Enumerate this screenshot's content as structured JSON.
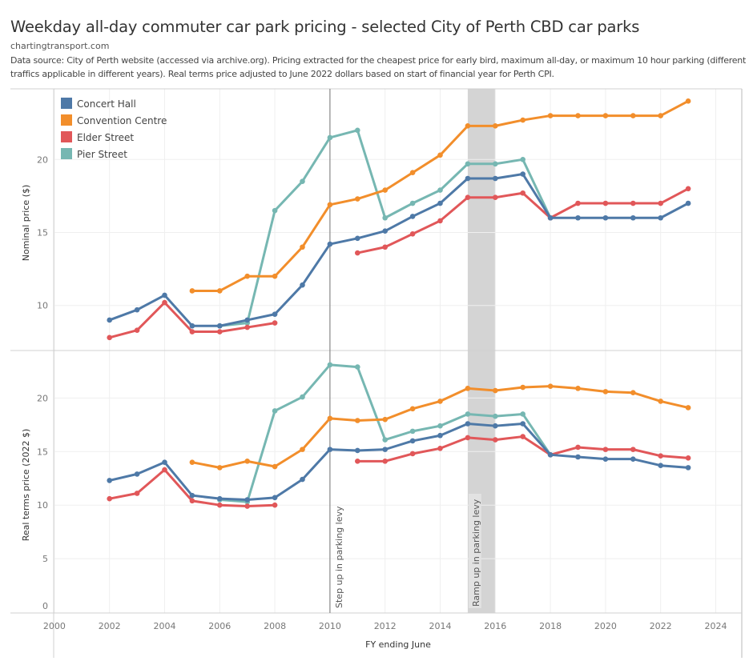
{
  "header": {
    "title": "Weekday all-day commuter car park pricing - selected City of Perth CBD car parks",
    "source": "chartingtransport.com",
    "description": "Data source: City of Perth website (accessed via archive.org). Pricing extracted for the cheapest price for early bird, maximum all-day, or maximum 10 hour parking (different traffics applicable in different years). Real terms price adjusted to June 2022 dollars based on start of financial year for Perth CPI."
  },
  "chart_data": [
    {
      "type": "line",
      "panel": "top",
      "title": "Weekday all-day commuter car park pricing - selected City of Perth CBD car parks",
      "xlabel": "FY ending June",
      "ylabel": "Nominal price ($)",
      "xlim": [
        2000,
        2025
      ],
      "ylim": [
        7.2,
        24.8
      ],
      "yticks": [
        10,
        15,
        20
      ],
      "grid": true,
      "legend_position": "top-left",
      "x": [
        2002,
        2003,
        2004,
        2005,
        2006,
        2007,
        2008,
        2009,
        2010,
        2011,
        2012,
        2013,
        2014,
        2015,
        2016,
        2017,
        2018,
        2019,
        2020,
        2021,
        2022,
        2023
      ],
      "series": [
        {
          "name": "Concert Hall",
          "color": "#4e79a7",
          "values": [
            9.0,
            9.7,
            10.7,
            8.6,
            8.6,
            9.0,
            9.4,
            11.4,
            14.2,
            14.6,
            15.1,
            16.1,
            17.0,
            18.7,
            18.7,
            19.0,
            16.0,
            16.0,
            16.0,
            16.0,
            16.0,
            17.0
          ]
        },
        {
          "name": "Convention Centre",
          "color": "#f28e2b",
          "values": [
            null,
            null,
            null,
            11.0,
            11.0,
            12.0,
            12.0,
            14.0,
            16.9,
            17.3,
            17.9,
            19.1,
            20.3,
            22.3,
            22.3,
            22.7,
            23.0,
            23.0,
            23.0,
            23.0,
            23.0,
            24.0
          ]
        },
        {
          "name": "Elder Street",
          "color": "#e15759",
          "values": [
            7.8,
            8.3,
            10.2,
            8.2,
            8.2,
            8.5,
            8.8,
            null,
            null,
            13.6,
            14.0,
            14.9,
            15.8,
            17.4,
            17.4,
            17.7,
            16.0,
            17.0,
            17.0,
            17.0,
            17.0,
            18.0
          ]
        },
        {
          "name": "Pier Street",
          "color": "#76b7b2",
          "values": [
            null,
            null,
            null,
            null,
            8.6,
            8.8,
            16.5,
            18.5,
            21.5,
            22.0,
            16.0,
            17.0,
            17.9,
            19.7,
            19.7,
            20.0,
            16.0,
            null,
            null,
            null,
            null,
            null
          ]
        }
      ]
    },
    {
      "type": "line",
      "panel": "bottom",
      "xlabel": "FY ending June",
      "ylabel": "Real terms price (2022 $)",
      "xlim": [
        2000,
        2025
      ],
      "ylim": [
        0,
        24.2
      ],
      "yticks": [
        0,
        5,
        10,
        15,
        20
      ],
      "xticks": [
        2000,
        2002,
        2004,
        2006,
        2008,
        2010,
        2012,
        2014,
        2016,
        2018,
        2020,
        2022,
        2024
      ],
      "grid": true,
      "x": [
        2002,
        2003,
        2004,
        2005,
        2006,
        2007,
        2008,
        2009,
        2010,
        2011,
        2012,
        2013,
        2014,
        2015,
        2016,
        2017,
        2018,
        2019,
        2020,
        2021,
        2022,
        2023
      ],
      "series": [
        {
          "name": "Concert Hall",
          "color": "#4e79a7",
          "values": [
            12.3,
            12.9,
            14.0,
            10.9,
            10.6,
            10.5,
            10.7,
            12.4,
            15.2,
            15.1,
            15.2,
            16.0,
            16.5,
            17.6,
            17.4,
            17.6,
            14.7,
            14.5,
            14.3,
            14.3,
            13.7,
            13.5
          ]
        },
        {
          "name": "Convention Centre",
          "color": "#f28e2b",
          "values": [
            null,
            null,
            null,
            14.0,
            13.5,
            14.1,
            13.6,
            15.2,
            18.1,
            17.9,
            18.0,
            19.0,
            19.7,
            20.9,
            20.7,
            21.0,
            21.1,
            20.9,
            20.6,
            20.5,
            19.7,
            19.1
          ]
        },
        {
          "name": "Elder Street",
          "color": "#e15759",
          "values": [
            10.6,
            11.1,
            13.3,
            10.4,
            10.0,
            9.9,
            10.0,
            null,
            null,
            14.1,
            14.1,
            14.8,
            15.3,
            16.3,
            16.1,
            16.4,
            14.7,
            15.4,
            15.2,
            15.2,
            14.6,
            14.4
          ]
        },
        {
          "name": "Pier Street",
          "color": "#76b7b2",
          "values": [
            null,
            null,
            null,
            null,
            10.5,
            10.3,
            18.8,
            20.1,
            23.1,
            22.9,
            16.1,
            16.9,
            17.4,
            18.5,
            18.3,
            18.5,
            14.7,
            null,
            null,
            null,
            null,
            null
          ]
        }
      ]
    }
  ],
  "annotations": [
    {
      "type": "vline",
      "x": 2010,
      "label": "Step up in parking levy"
    },
    {
      "type": "band",
      "x_start": 2015,
      "x_end": 2016,
      "label": "Ramp up in parking levy"
    }
  ]
}
